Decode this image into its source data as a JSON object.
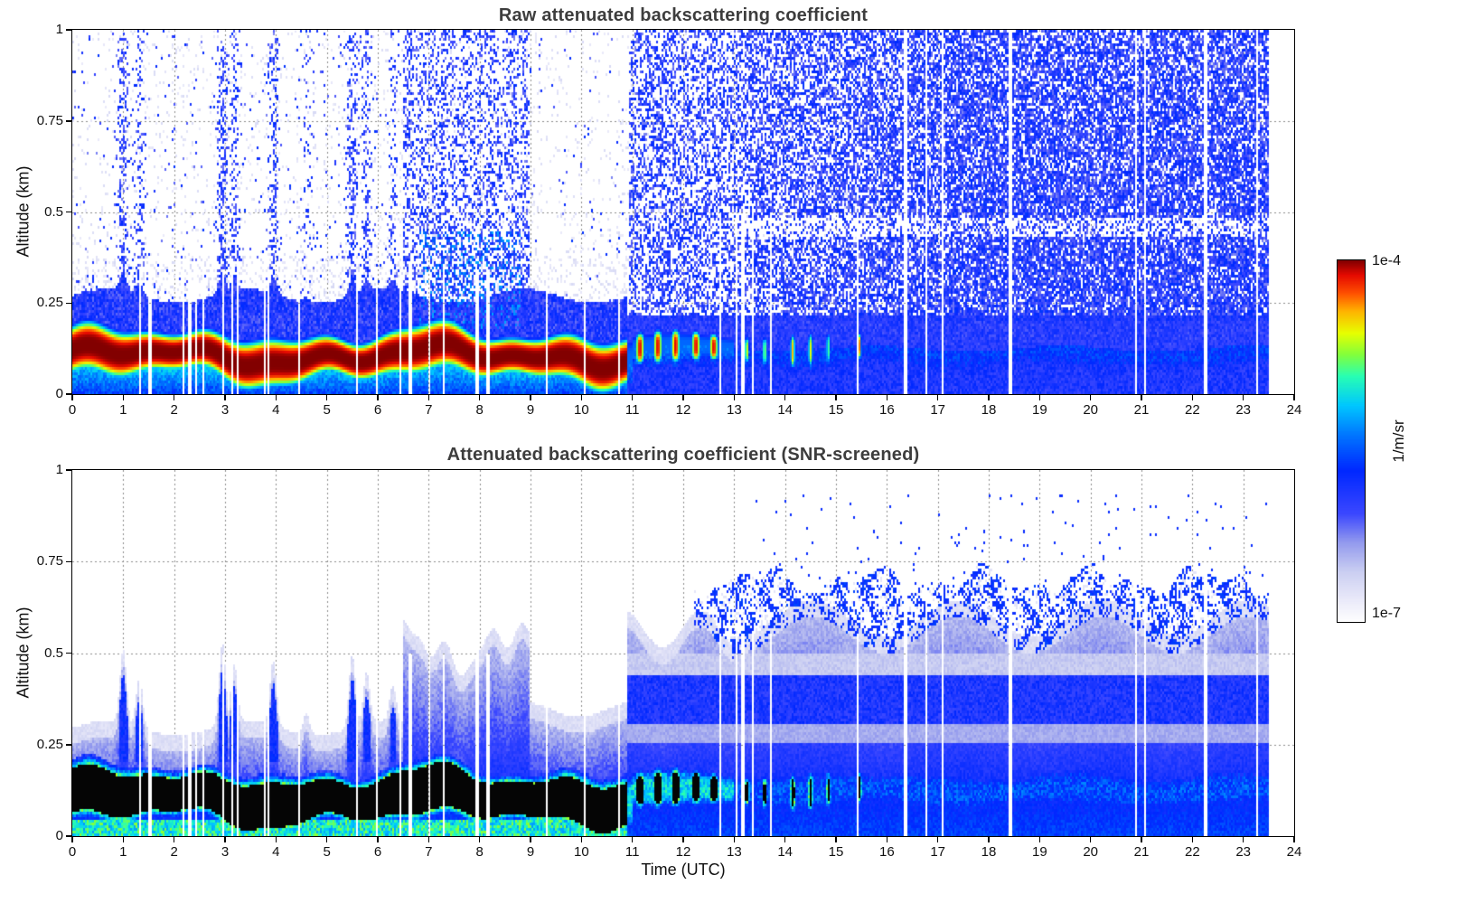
{
  "figure": {
    "background": "#ffffff"
  },
  "panels": [
    {
      "title": "Raw attenuated backscattering coefficient"
    },
    {
      "title": "Attenuated backscattering coefficient (SNR-screened)"
    }
  ],
  "axis": {
    "x_label": "Time (UTC)",
    "y_label": "Altitude (km)",
    "x_ticks": [
      [
        0,
        "0"
      ],
      [
        1,
        "1"
      ],
      [
        2,
        "2"
      ],
      [
        3,
        "3"
      ],
      [
        4,
        "4"
      ],
      [
        5,
        "5"
      ],
      [
        6,
        "6"
      ],
      [
        7,
        "7"
      ],
      [
        8,
        "8"
      ],
      [
        9,
        "9"
      ],
      [
        10,
        "10"
      ],
      [
        11,
        "11"
      ],
      [
        12,
        "12"
      ],
      [
        13,
        "13"
      ],
      [
        14,
        "14"
      ],
      [
        15,
        "15"
      ],
      [
        16,
        "16"
      ],
      [
        17,
        "17"
      ],
      [
        18,
        "18"
      ],
      [
        19,
        "19"
      ],
      [
        20,
        "20"
      ],
      [
        21,
        "21"
      ],
      [
        22,
        "22"
      ],
      [
        23,
        "23"
      ],
      [
        24,
        "24"
      ]
    ],
    "y_ticks": [
      [
        0,
        "0"
      ],
      [
        0.25,
        "0.25"
      ],
      [
        0.5,
        "0.5"
      ],
      [
        0.75,
        "0.75"
      ],
      [
        1,
        "1"
      ]
    ]
  },
  "colorbar": {
    "max_label": "1e-4",
    "min_label": "1e-7",
    "unit": "1/m/sr",
    "scale": "log",
    "value_min": 1e-07,
    "value_max": 0.0001,
    "stops": [
      [
        0,
        255,
        255,
        255
      ],
      [
        0.06,
        235,
        235,
        250
      ],
      [
        0.14,
        203,
        207,
        242
      ],
      [
        0.22,
        148,
        155,
        238
      ],
      [
        0.3,
        60,
        72,
        255
      ],
      [
        0.42,
        0,
        40,
        255
      ],
      [
        0.52,
        0,
        120,
        255
      ],
      [
        0.6,
        0,
        200,
        255
      ],
      [
        0.68,
        40,
        255,
        180
      ],
      [
        0.74,
        130,
        255,
        60
      ],
      [
        0.8,
        232,
        255,
        0
      ],
      [
        0.86,
        255,
        180,
        0
      ],
      [
        0.91,
        255,
        80,
        0
      ],
      [
        0.96,
        230,
        10,
        0
      ],
      [
        1,
        130,
        0,
        0
      ]
    ]
  },
  "chart_data": [
    {
      "type": "heatmap",
      "panel": "raw",
      "title": "Raw attenuated backscattering coefficient",
      "xlabel": "Time (UTC)",
      "ylabel": "Altitude (km)",
      "xlim": [
        0,
        24
      ],
      "ylim": [
        0,
        1
      ],
      "value_scale": "log",
      "value_range": [
        1e-07,
        0.0001
      ],
      "value_unit": "1/m/sr",
      "data_end_utc": 23.5,
      "grid": "dotted, every 1 h and every 0.25 km",
      "legend_position": "colorbar right",
      "features": [
        {
          "name": "surface-aerosol-layer",
          "time_utc": [
            0,
            11
          ],
          "altitude_km": [
            0.03,
            0.18
          ],
          "peak_value_1_per_m_sr": 0.0001,
          "note": "continuous dark-red layer saturating the colour scale"
        },
        {
          "name": "decaying-layer-blobs",
          "time_utc": [
            11,
            15.5
          ],
          "altitude_km": [
            0.08,
            0.18
          ],
          "peak_value_1_per_m_sr": 3e-05,
          "blob_times_utc": [
            11.2,
            11.5,
            11.9,
            12.3,
            12.6,
            13.3,
            13.6,
            14.2,
            14.5,
            15.45
          ]
        },
        {
          "name": "vertical-noise-plumes",
          "times_utc": [
            1.0,
            1.3,
            3.0,
            3.2,
            4.0,
            5.5,
            5.8,
            6.3
          ],
          "altitude_km": [
            0.3,
            1.0
          ],
          "value_1_per_m_sr": 1e-06
        },
        {
          "name": "dense-noise-columns",
          "time_utc": [
            6.5,
            9.0
          ],
          "altitude_km": [
            0.25,
            1.0
          ]
        },
        {
          "name": "clean-gap",
          "time_utc": [
            9.0,
            11.0
          ],
          "altitude_km": [
            0.3,
            1.0
          ],
          "note": "white, no signal above the layer"
        },
        {
          "name": "daytime-background-noise",
          "time_utc": [
            11,
            23.5
          ],
          "altitude_km": [
            0.2,
            1.0
          ],
          "value_1_per_m_sr": 2e-06,
          "note": "dense blue speckle, density increases after 13 UTC"
        },
        {
          "name": "no-data",
          "time_utc": [
            23.5,
            24
          ]
        }
      ]
    },
    {
      "type": "heatmap",
      "panel": "screened",
      "title": "Attenuated backscattering coefficient (SNR-screened)",
      "xlabel": "Time (UTC)",
      "ylabel": "Altitude (km)",
      "xlim": [
        0,
        24
      ],
      "ylim": [
        0,
        1
      ],
      "value_scale": "log",
      "value_range": [
        1e-07,
        0.0001
      ],
      "value_unit": "1/m/sr",
      "data_end_utc": 23.5,
      "grid": "dotted, every 1 h and every 0.25 km",
      "legend_position": "colorbar right",
      "features": [
        {
          "name": "saturated-boundary-layer",
          "time_utc": [
            0,
            11
          ],
          "altitude_km": [
            0.04,
            0.17
          ],
          "note": "rendered black (above 1e-4) with cyan-green fringe toward the surface"
        },
        {
          "name": "aerosol-plumes",
          "times_utc": [
            1.0,
            1.3,
            3.0,
            3.2,
            4.0,
            5.5,
            5.8
          ],
          "top_km": 0.45
        },
        {
          "name": "convective-structures",
          "time_utc": [
            6.5,
            9.0
          ],
          "top_km": 0.6
        },
        {
          "name": "layer-blobs",
          "time_utc": [
            11,
            15.5
          ],
          "altitude_km": [
            0.08,
            0.18
          ],
          "note": "black cores with green-yellow-orange rings"
        },
        {
          "name": "residual-layer-speckle",
          "time_utc": [
            13,
            23.5
          ],
          "altitude_km": [
            0.55,
            0.78
          ]
        },
        {
          "name": "pale-bands",
          "time_utc": [
            11,
            23.5
          ],
          "bands_km": [
            [
              0.25,
              0.3
            ],
            [
              0.44,
              0.5
            ]
          ],
          "value_1_per_m_sr": 3e-07
        },
        {
          "name": "isolated-pixels",
          "time_utc": [
            13.5,
            23.5
          ],
          "altitude_km": [
            0.78,
            0.93
          ]
        },
        {
          "name": "no-data",
          "time_utc": [
            23.5,
            24
          ]
        }
      ]
    }
  ],
  "render_params": {
    "data_end_utc": 23.5,
    "grid_nx": 676,
    "grid_ny": 134,
    "layer": {
      "strong_until_utc": 10.9,
      "strong_blobs": [
        11.15,
        11.5,
        11.85,
        12.25,
        12.6
      ],
      "weak_blobs": [
        [
          13.25,
          0.8
        ],
        [
          13.6,
          0.75
        ],
        [
          14.15,
          0.85
        ],
        [
          14.5,
          0.8
        ],
        [
          14.85,
          0.7
        ],
        [
          15.45,
          0.92
        ]
      ]
    },
    "plumes": [
      [
        1.0,
        0.2
      ],
      [
        1.32,
        0.14
      ],
      [
        2.95,
        0.22
      ],
      [
        3.18,
        0.16
      ],
      [
        3.95,
        0.18
      ],
      [
        4.6,
        0.06
      ],
      [
        5.5,
        0.2
      ],
      [
        5.78,
        0.14
      ],
      [
        6.3,
        0.1
      ]
    ]
  }
}
